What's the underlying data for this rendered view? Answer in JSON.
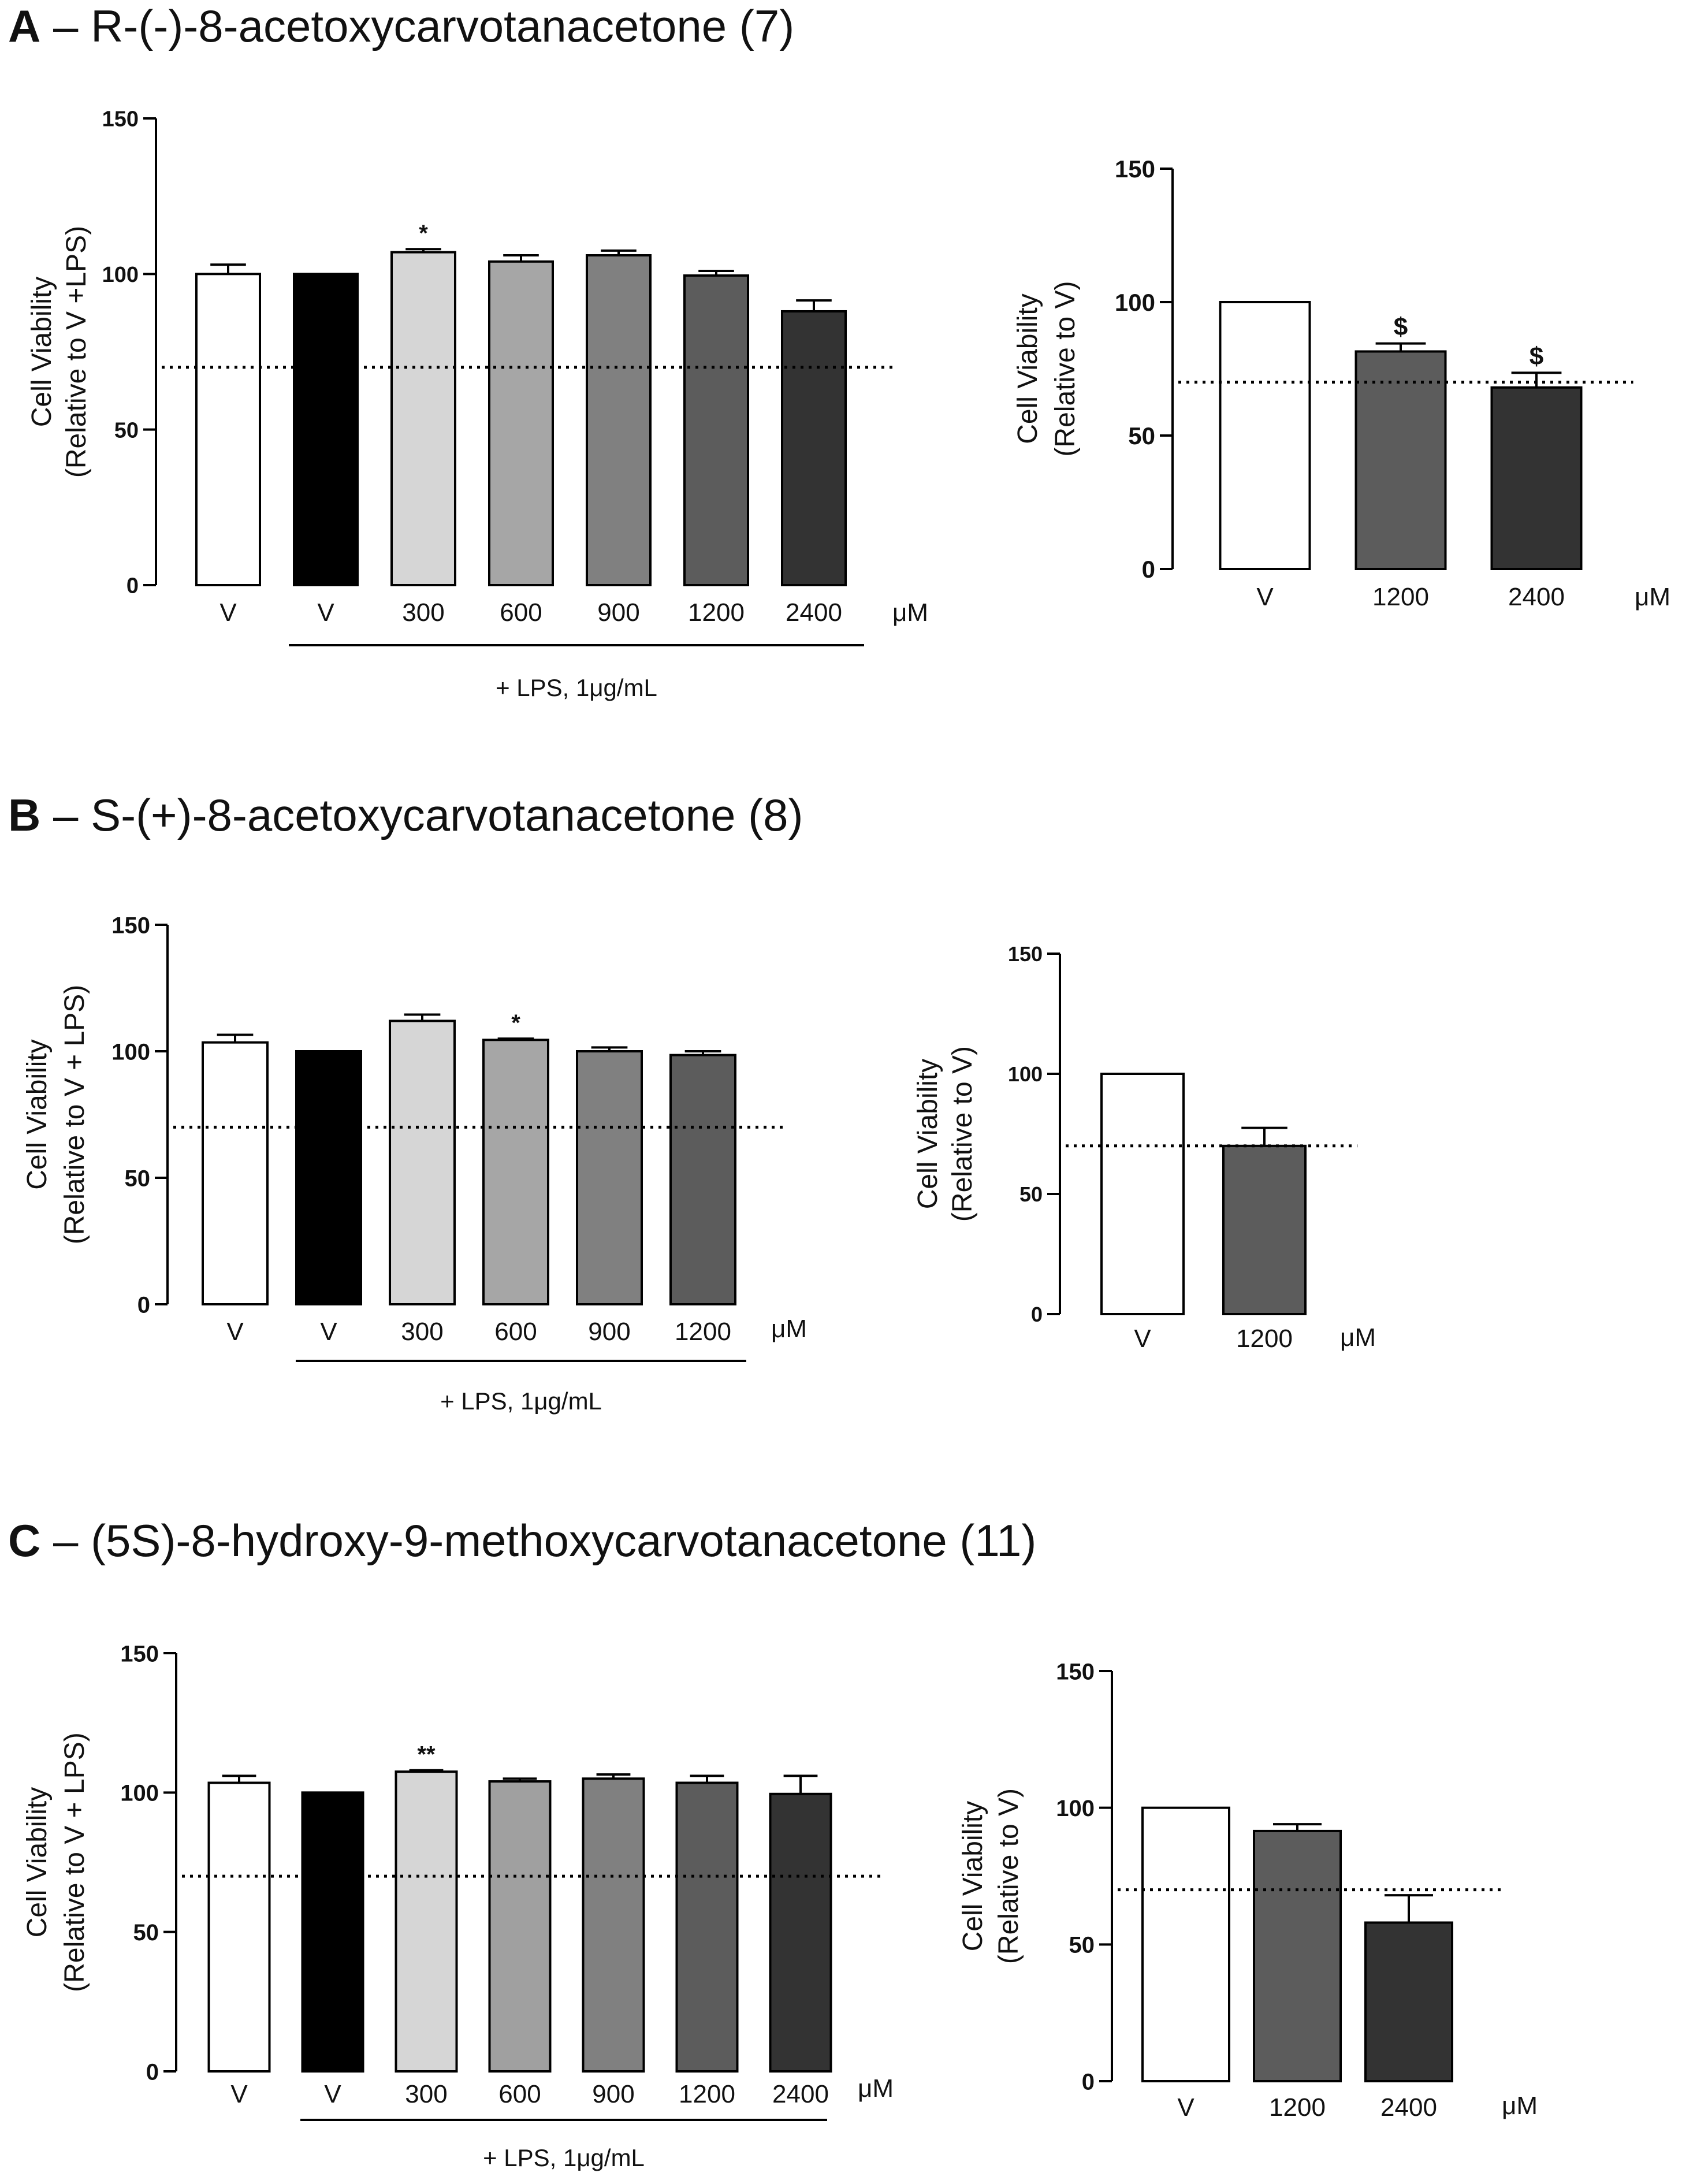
{
  "figure": {
    "panels": [
      {
        "letter": "A",
        "dash": " – ",
        "title": "R-(-)-8-acetoxycarvotanacetone (7)"
      },
      {
        "letter": "B",
        "dash": " – ",
        "title": "S-(+)-8-acetoxycarvotanacetone (8)"
      },
      {
        "letter": "C",
        "dash": " – ",
        "title": "(5S)-8-hydroxy-9-methoxycarvotanacetone (11)"
      }
    ]
  },
  "chart_data": [
    {
      "panel": "A",
      "type": "bar",
      "ylabel": [
        "Cell Viability",
        "(Relative to V +LPS)"
      ],
      "yticks": [
        0,
        50,
        100,
        150
      ],
      "ylim": [
        0,
        150
      ],
      "categories": [
        "V",
        "V",
        "300",
        "600",
        "900",
        "1200",
        "2400"
      ],
      "values": [
        100,
        100,
        107,
        104,
        106,
        99.5,
        88
      ],
      "errors": [
        3,
        0,
        1,
        2,
        1.5,
        1.5,
        3.5
      ],
      "colors": [
        "#ffffff",
        "#000000",
        "#d6d6d6",
        "#a6a6a6",
        "#808080",
        "#5c5c5c",
        "#333333"
      ],
      "annotations": [
        "",
        "",
        "*",
        "",
        "",
        "",
        ""
      ],
      "unit": "μM",
      "group_label": "+ LPS, 1μg/mL",
      "group_span": [
        1,
        6
      ],
      "reference_line": 70
    },
    {
      "panel": "A",
      "type": "bar",
      "ylabel": [
        "Cell Viability",
        "(Relative to V)"
      ],
      "yticks": [
        0,
        50,
        100,
        150
      ],
      "ylim": [
        0,
        150
      ],
      "categories": [
        "V",
        "1200",
        "2400"
      ],
      "values": [
        100,
        81.5,
        68
      ],
      "errors": [
        0,
        3,
        5.5
      ],
      "colors": [
        "#ffffff",
        "#5c5c5c",
        "#333333"
      ],
      "annotations": [
        "",
        "$",
        "$"
      ],
      "unit": "μM",
      "group_label": "",
      "group_span": null,
      "reference_line": 70
    },
    {
      "panel": "B",
      "type": "bar",
      "ylabel": [
        "Cell Viability",
        "(Relative to V + LPS)"
      ],
      "yticks": [
        0,
        50,
        100,
        150
      ],
      "ylim": [
        0,
        150
      ],
      "categories": [
        "V",
        "V",
        "300",
        "600",
        "900",
        "1200"
      ],
      "values": [
        103.5,
        100,
        112,
        104.5,
        100,
        98.5
      ],
      "errors": [
        3,
        0,
        2.5,
        0.5,
        1.5,
        1.5
      ],
      "colors": [
        "#ffffff",
        "#000000",
        "#d6d6d6",
        "#a6a6a6",
        "#808080",
        "#5c5c5c"
      ],
      "annotations": [
        "",
        "",
        "",
        "*",
        "",
        ""
      ],
      "unit": "μM",
      "group_label": "+ LPS, 1μg/mL",
      "group_span": [
        1,
        5
      ],
      "reference_line": 70
    },
    {
      "panel": "B",
      "type": "bar",
      "ylabel": [
        "Cell Viability",
        "(Relative to V)"
      ],
      "yticks": [
        0,
        50,
        100,
        150
      ],
      "ylim": [
        0,
        150
      ],
      "categories": [
        "V",
        "1200"
      ],
      "values": [
        100,
        70
      ],
      "errors": [
        0,
        7.5
      ],
      "colors": [
        "#ffffff",
        "#5c5c5c"
      ],
      "annotations": [
        "",
        ""
      ],
      "unit": "μM",
      "group_label": "",
      "group_span": null,
      "reference_line": 70
    },
    {
      "panel": "C",
      "type": "bar",
      "ylabel": [
        "Cell Viability",
        "(Relative to V + LPS)"
      ],
      "yticks": [
        0,
        50,
        100,
        150
      ],
      "ylim": [
        0,
        150
      ],
      "categories": [
        "V",
        "V",
        "300",
        "600",
        "900",
        "1200",
        "2400"
      ],
      "values": [
        103.5,
        100,
        107.5,
        104,
        105,
        103.5,
        99.5
      ],
      "errors": [
        2.5,
        0,
        0.5,
        1,
        1.5,
        2.5,
        6.5
      ],
      "colors": [
        "#ffffff",
        "#000000",
        "#d6d6d6",
        "#a0a0a0",
        "#808080",
        "#5c5c5c",
        "#333333"
      ],
      "annotations": [
        "",
        "",
        "**",
        "",
        "",
        "",
        ""
      ],
      "unit": "μM",
      "group_label": "+ LPS, 1μg/mL",
      "group_span": [
        1,
        6
      ],
      "reference_line": 70
    },
    {
      "panel": "C",
      "type": "bar",
      "ylabel": [
        "Cell Viability",
        "(Relative to V)"
      ],
      "yticks": [
        0,
        50,
        100,
        150
      ],
      "ylim": [
        0,
        150
      ],
      "categories": [
        "V",
        "1200",
        "2400"
      ],
      "values": [
        100,
        91.5,
        58
      ],
      "errors": [
        0,
        2.5,
        10
      ],
      "colors": [
        "#ffffff",
        "#5c5c5c",
        "#333333"
      ],
      "annotations": [
        "",
        "",
        ""
      ],
      "unit": "μM",
      "group_label": "",
      "group_span": null,
      "reference_line": 70
    }
  ]
}
